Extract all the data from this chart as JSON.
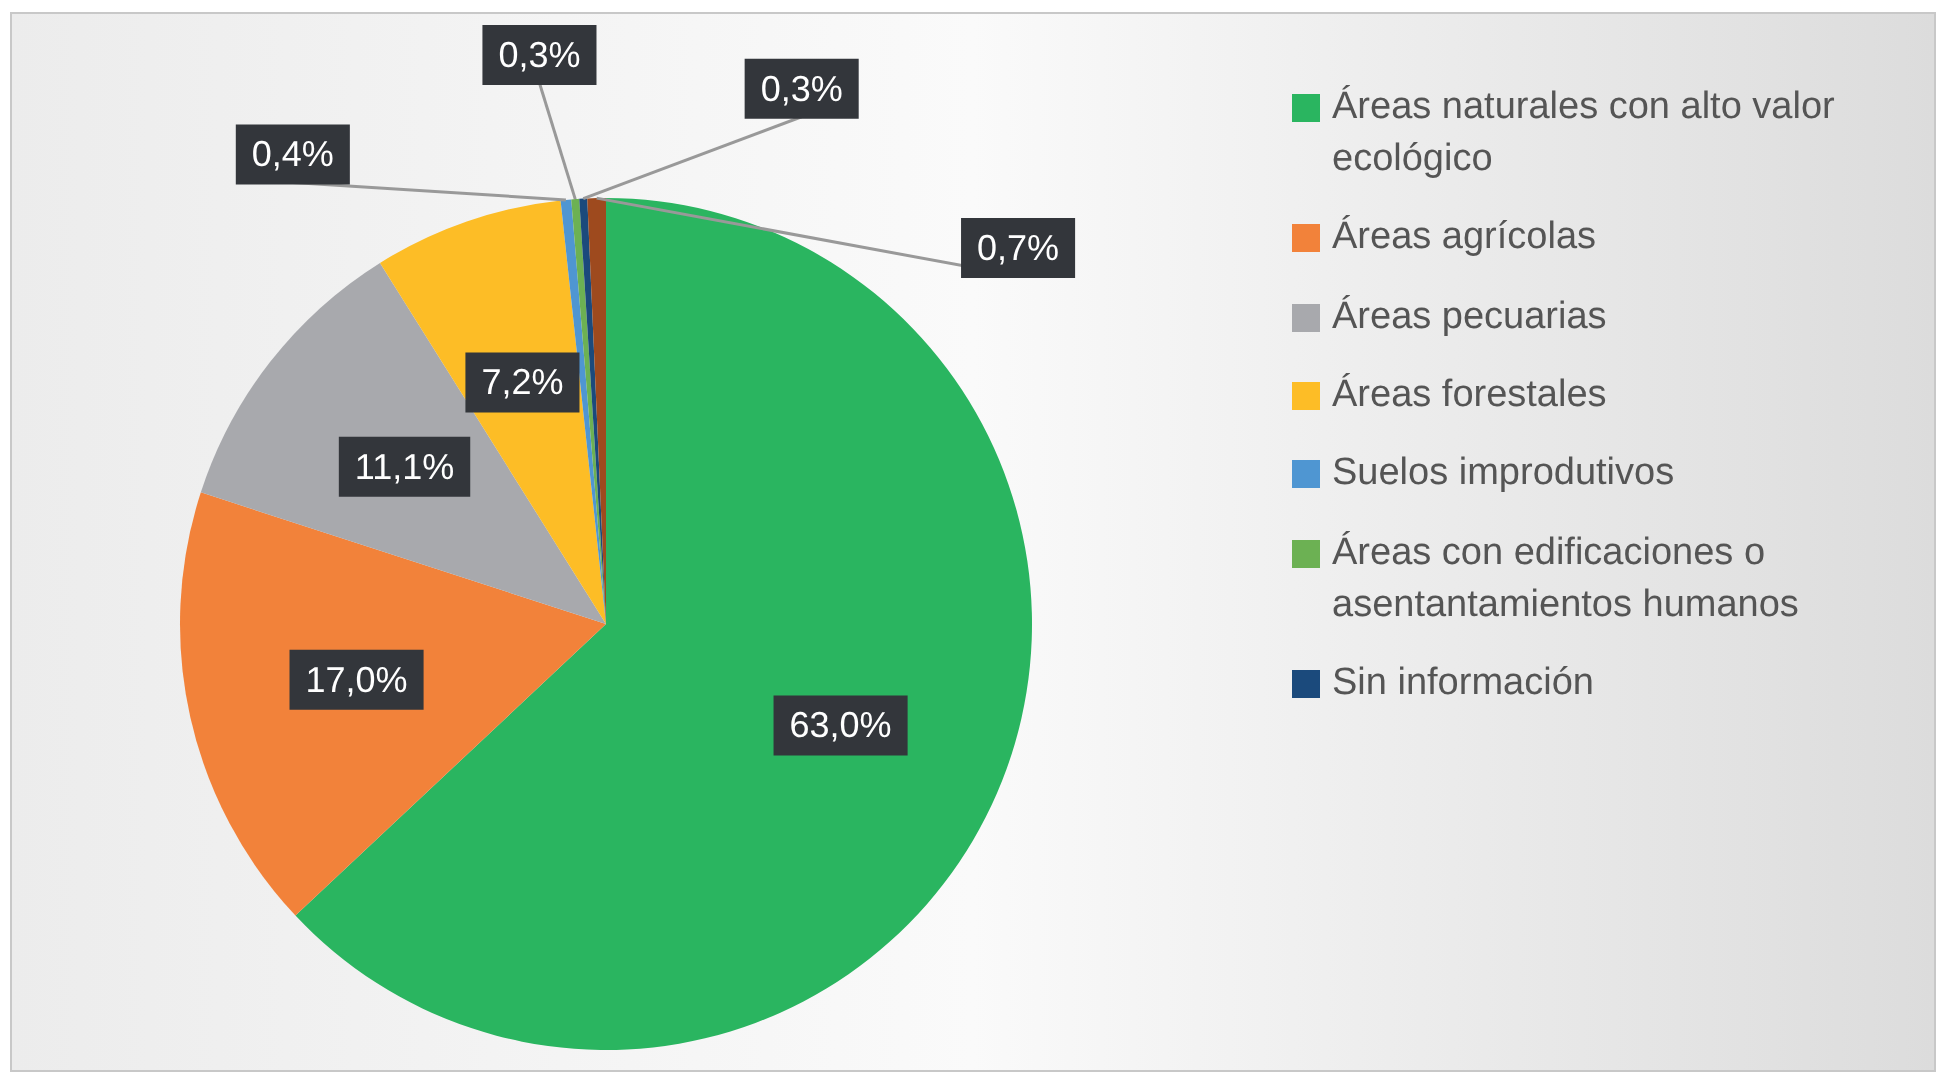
{
  "chart_data": {
    "type": "pie",
    "categories": [
      "Áreas naturales con alto valor ecológico",
      "Áreas agrícolas",
      "Áreas pecuarias",
      "Áreas forestales",
      "Suelos improdutivos",
      "Áreas con edificaciones o asentantamientos humanos",
      "Sin información",
      null
    ],
    "values": [
      63.0,
      17.0,
      11.1,
      7.2,
      0.4,
      0.3,
      0.3,
      0.7
    ],
    "colors": [
      "#2ab560",
      "#f2823a",
      "#a8a9ad",
      "#fdbd26",
      "#4f96d2",
      "#6cb153",
      "#1b4a7c",
      "#9e4a1e"
    ],
    "value_labels": [
      "63,0%",
      "17,0%",
      "11,1%",
      "7,2%",
      "0,4%",
      "0,3%",
      "0,3%",
      "0,7%"
    ],
    "legend": "right"
  }
}
